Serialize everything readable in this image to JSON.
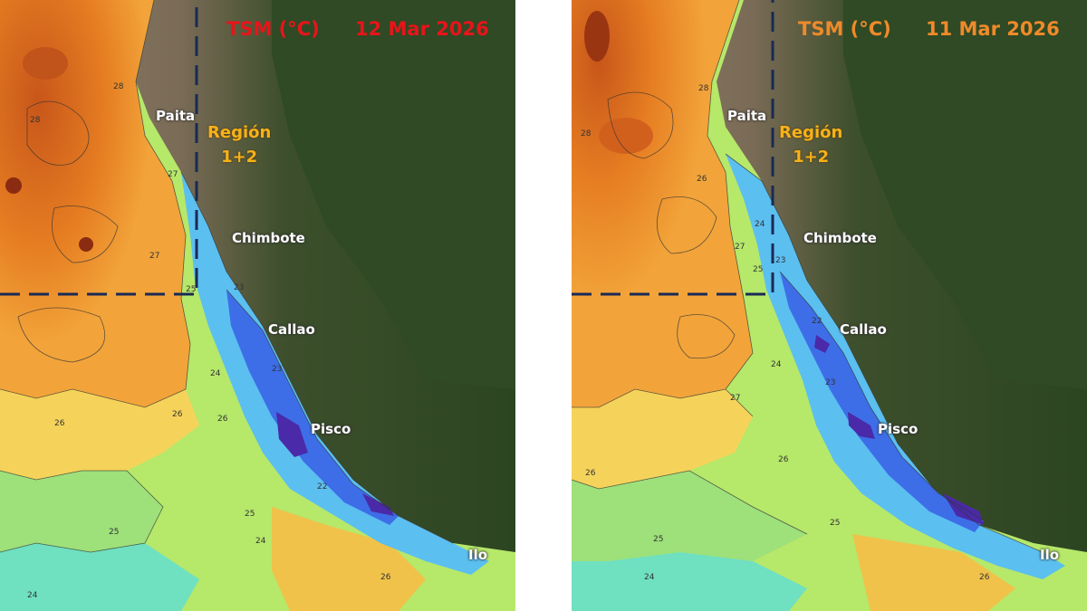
{
  "panels": [
    {
      "title_var": "TSM (°C)",
      "date": "12 Mar 2026",
      "title_color": "#e8141a",
      "region_label": "Región",
      "region_sub": "1+2",
      "cities": [
        "Paita",
        "Chimbote",
        "Callao",
        "Pisco",
        "Ilo"
      ],
      "contour_labels": [
        "28",
        "28",
        "27",
        "26",
        "25",
        "24",
        "23",
        "22",
        "25",
        "26",
        "24",
        "25",
        "26",
        "27",
        "26",
        "24",
        "23"
      ]
    },
    {
      "title_var": "TSM (°C)",
      "date": "11 Mar 2026",
      "title_color": "#ef8a2a",
      "region_label": "Región",
      "region_sub": "1+2",
      "cities": [
        "Paita",
        "Chimbote",
        "Callao",
        "Pisco",
        "Ilo"
      ],
      "contour_labels": [
        "28",
        "28",
        "27",
        "26",
        "25",
        "24",
        "23",
        "22",
        "25",
        "26",
        "24",
        "25",
        "26",
        "27",
        "26",
        "24",
        "23"
      ]
    }
  ],
  "colors": {
    "land_forest": "#2f4a24",
    "land_desert": "#9c8f78",
    "sst_28": "#d9651a",
    "sst_27": "#f0a23a",
    "sst_26": "#f5d35a",
    "sst_25": "#b6e86a",
    "sst_24": "#6fe8a6",
    "sst_23": "#5bbff0",
    "sst_22": "#3d6ee8",
    "sst_21": "#4a2aa8",
    "box_line": "#1a2a55"
  }
}
